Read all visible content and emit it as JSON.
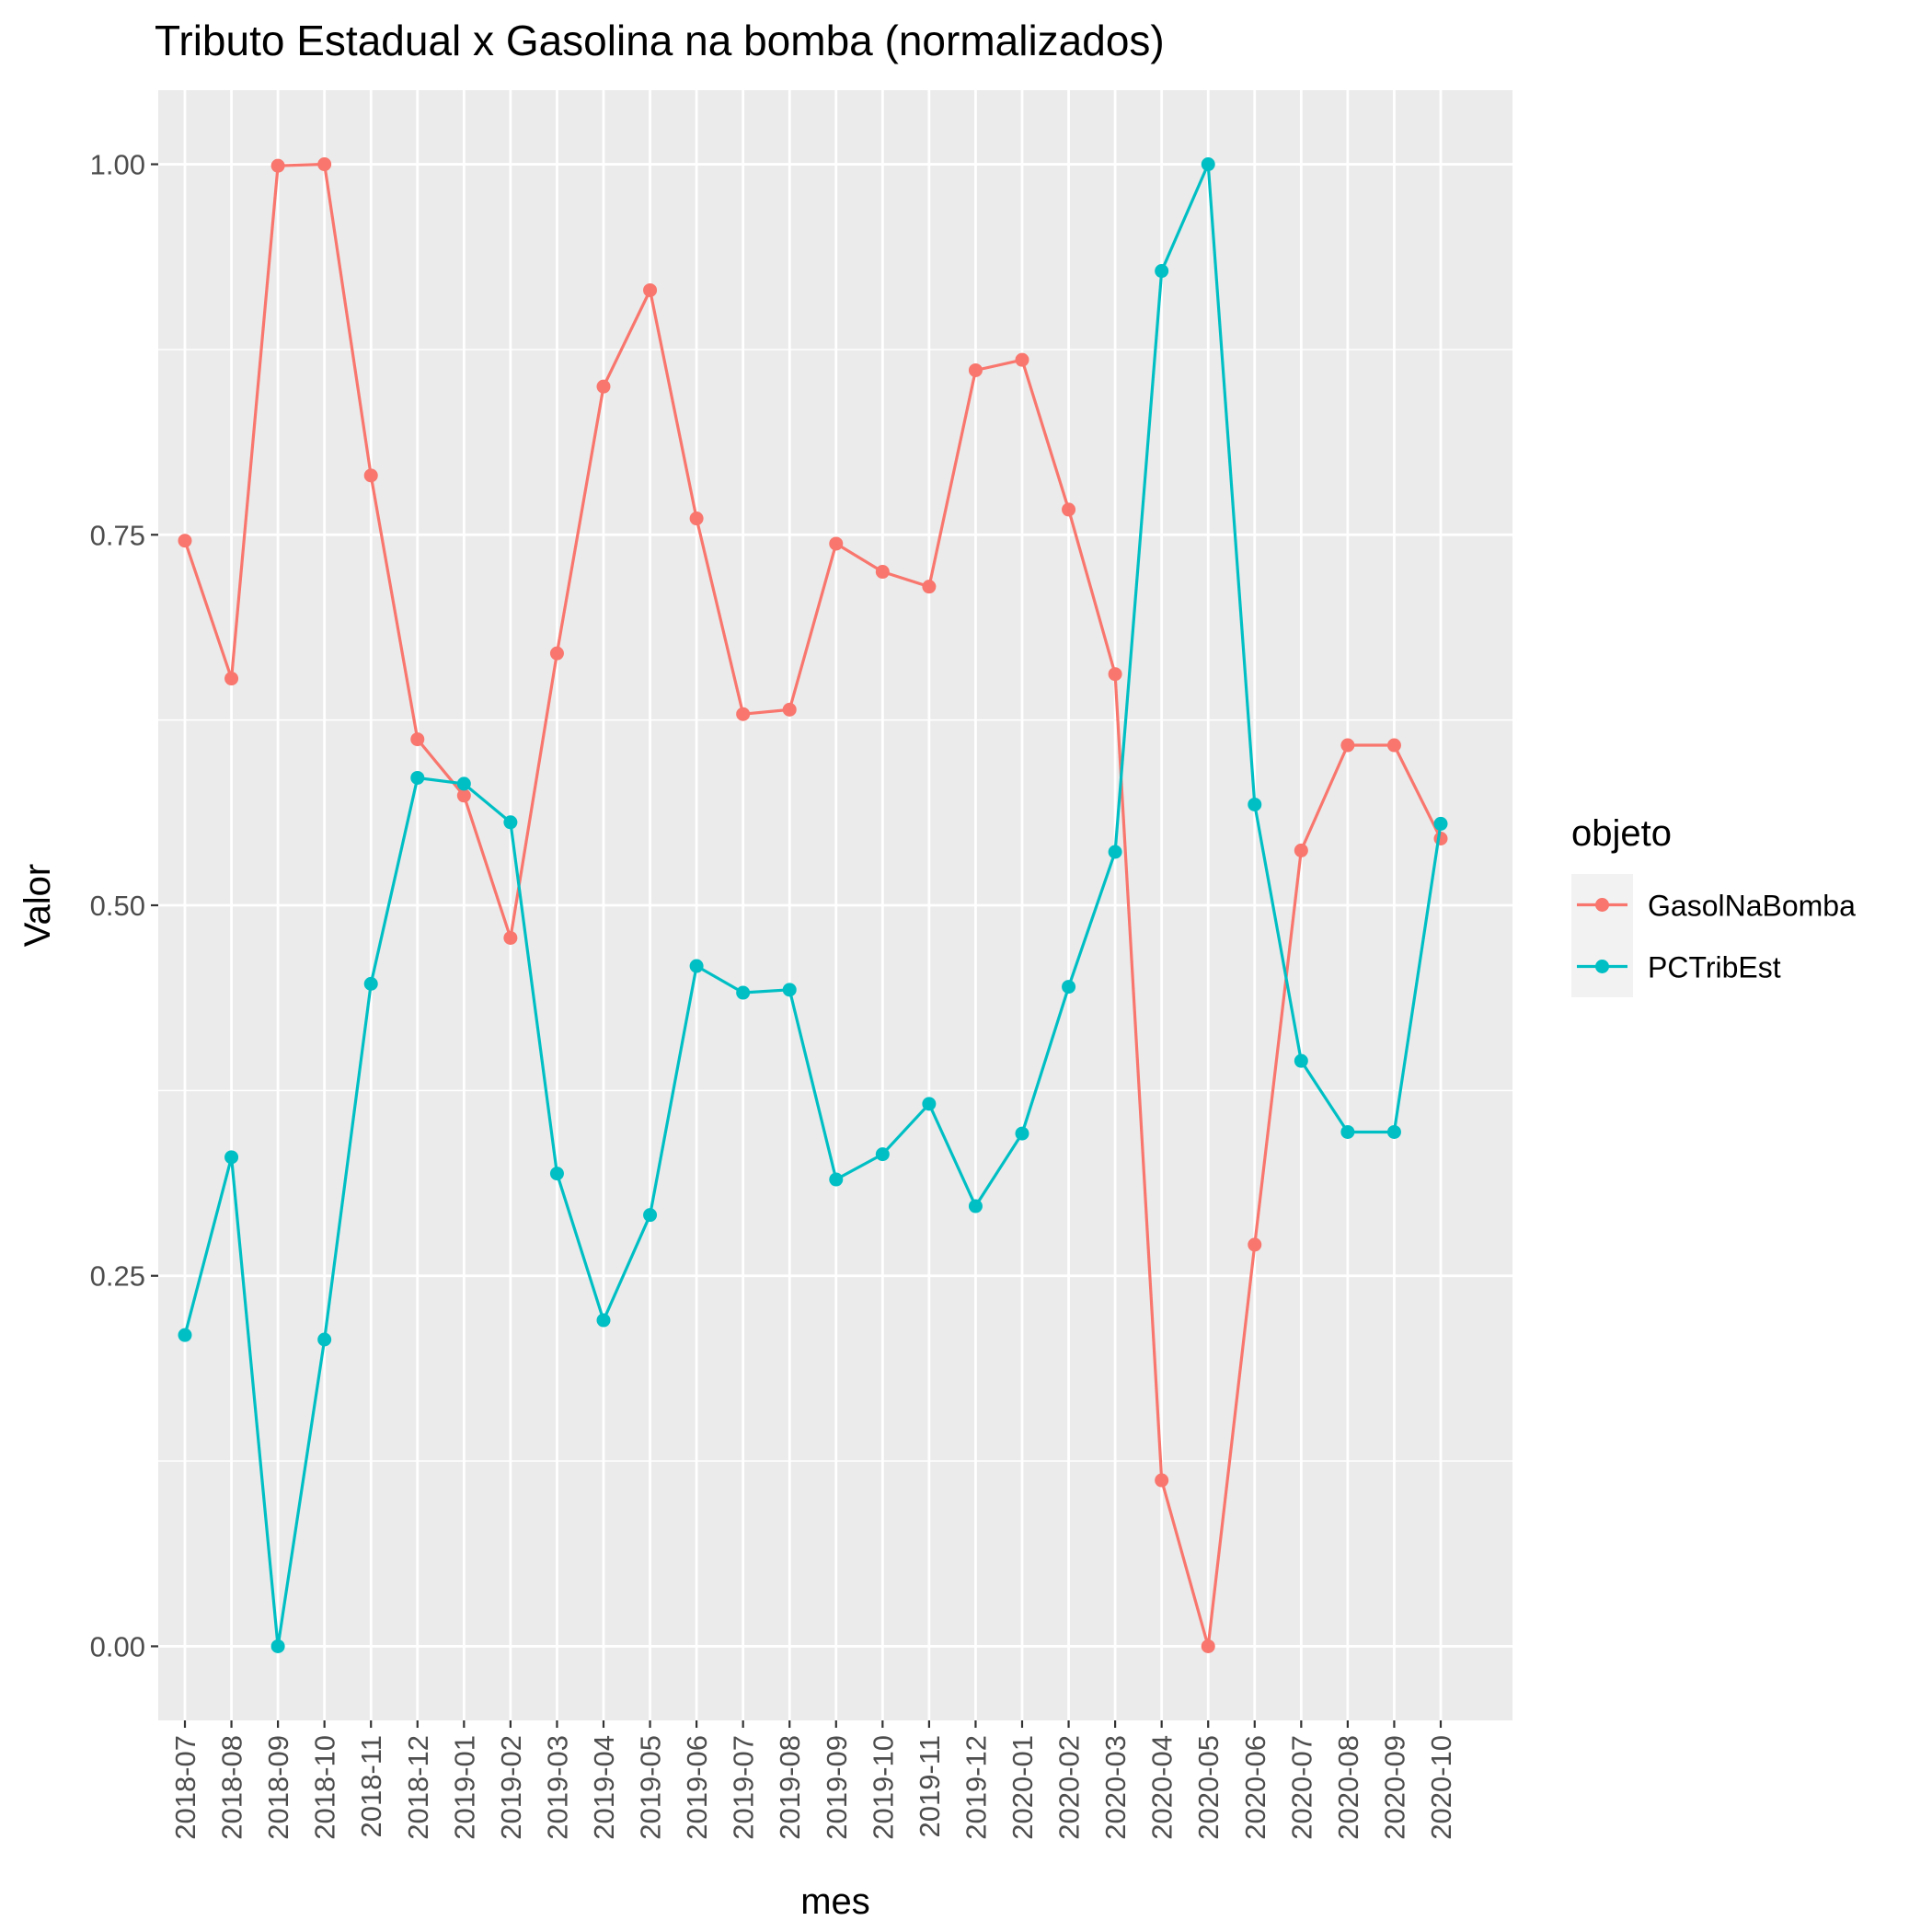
{
  "chart_data": {
    "type": "line",
    "title": "Tributo Estadual x Gasolina na bomba (normalizados)",
    "xlabel": "mes",
    "ylabel": "Valor",
    "categories": [
      "2018-07",
      "2018-08",
      "2018-09",
      "2018-10",
      "2018-11",
      "2018-12",
      "2019-01",
      "2019-02",
      "2019-03",
      "2019-04",
      "2019-05",
      "2019-06",
      "2019-07",
      "2019-08",
      "2019-09",
      "2019-10",
      "2019-11",
      "2019-12",
      "2020-01",
      "2020-02",
      "2020-03",
      "2020-04",
      "2020-05",
      "2020-06",
      "2020-07",
      "2020-08",
      "2020-09",
      "2020-10"
    ],
    "ylim": [
      -0.05,
      1.05
    ],
    "yticks": [
      0.0,
      0.25,
      0.5,
      0.75,
      1.0
    ],
    "ytick_labels": [
      "0.00",
      "0.25",
      "0.50",
      "0.75",
      "1.00"
    ],
    "grid": true,
    "legend": {
      "title": "objeto",
      "position": "right"
    },
    "series": [
      {
        "name": "GasolNaBomba",
        "color": "#F8766D",
        "values": [
          0.746,
          0.653,
          0.999,
          1.0,
          0.79,
          0.612,
          0.574,
          0.478,
          0.67,
          0.85,
          0.915,
          0.761,
          0.629,
          0.632,
          0.744,
          0.725,
          0.715,
          0.861,
          0.868,
          0.767,
          0.656,
          0.112,
          0.0,
          0.271,
          0.537,
          0.608,
          0.608,
          0.545
        ]
      },
      {
        "name": "PCTribEst",
        "color": "#00BFC4",
        "values": [
          0.21,
          0.33,
          0.0,
          0.207,
          0.447,
          0.586,
          0.582,
          0.556,
          0.319,
          0.22,
          0.291,
          0.459,
          0.441,
          0.443,
          0.315,
          0.332,
          0.366,
          0.297,
          0.346,
          0.445,
          0.536,
          0.928,
          1.0,
          0.568,
          0.395,
          0.347,
          0.347,
          0.555
        ]
      }
    ]
  }
}
